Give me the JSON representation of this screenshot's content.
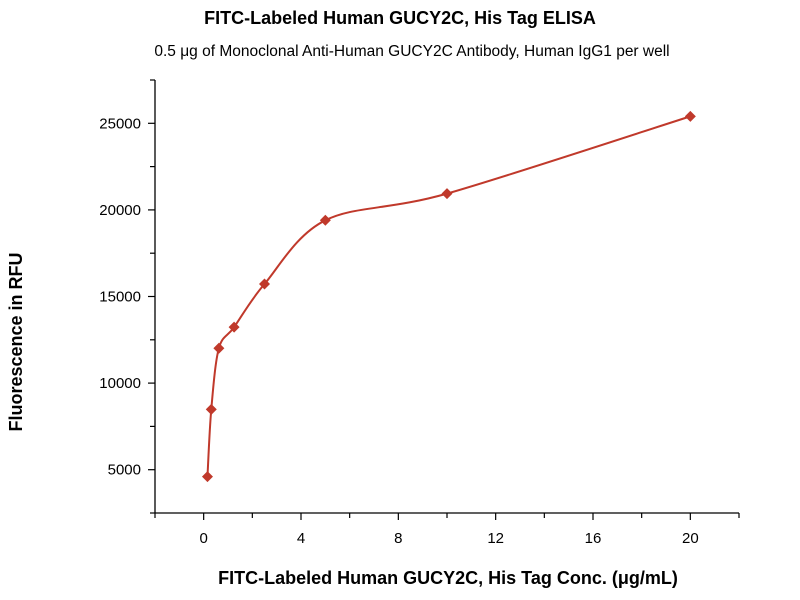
{
  "chart_data": {
    "type": "line",
    "title": "FITC-Labeled Human GUCY2C, His Tag ELISA",
    "subtitle": "0.5 μg of Monoclonal Anti-Human GUCY2C Antibody, Human IgG1 per well",
    "xlabel": "FITC-Labeled Human GUCY2C, His Tag Conc. (μg/mL)",
    "ylabel": "Fluorescence in RFU",
    "xlim": [
      -2,
      22
    ],
    "ylim": [
      2500,
      27500
    ],
    "xticks": [
      0,
      4,
      8,
      12,
      16,
      20
    ],
    "yticks": [
      5000,
      10000,
      15000,
      20000,
      25000
    ],
    "grid": false,
    "marker": "diamond",
    "color": "#c0392b",
    "series": [
      {
        "x": [
          0.156,
          0.3125,
          0.625,
          1.25,
          2.5,
          5,
          10,
          20
        ],
        "y": [
          4600,
          8480,
          12010,
          13230,
          15720,
          19400,
          20940,
          25400
        ]
      }
    ]
  }
}
